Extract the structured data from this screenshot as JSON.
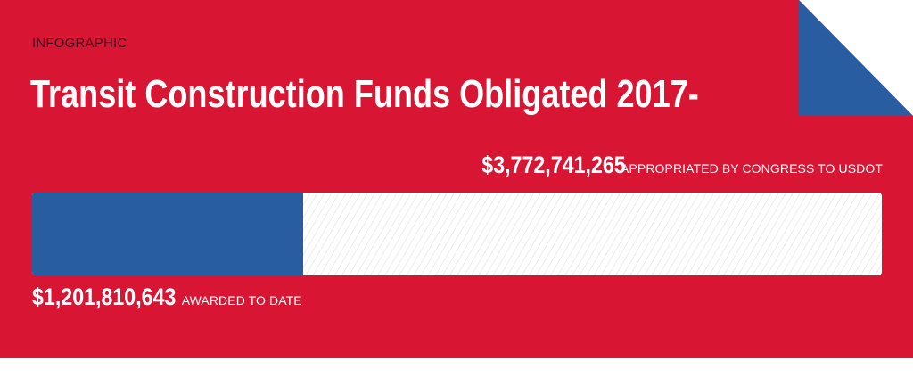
{
  "header": {
    "tag": "INFOGRAPHIC",
    "title": "Transit Construction Funds Obligated 2017-"
  },
  "colors": {
    "background": "#d81533",
    "accent_blue": "#285da1",
    "text": "#ffffff"
  },
  "chart_data": {
    "type": "bar",
    "title": "Transit Construction Funds Obligated 2017-",
    "total": {
      "amount": "$3,772,741,265",
      "label": "APPROPRIATED BY CONGRESS TO USDOT",
      "value": 3772741265
    },
    "awarded": {
      "amount": "$1,201,810,643",
      "label": "AWARDED TO DATE",
      "value": 1201810643
    }
  }
}
